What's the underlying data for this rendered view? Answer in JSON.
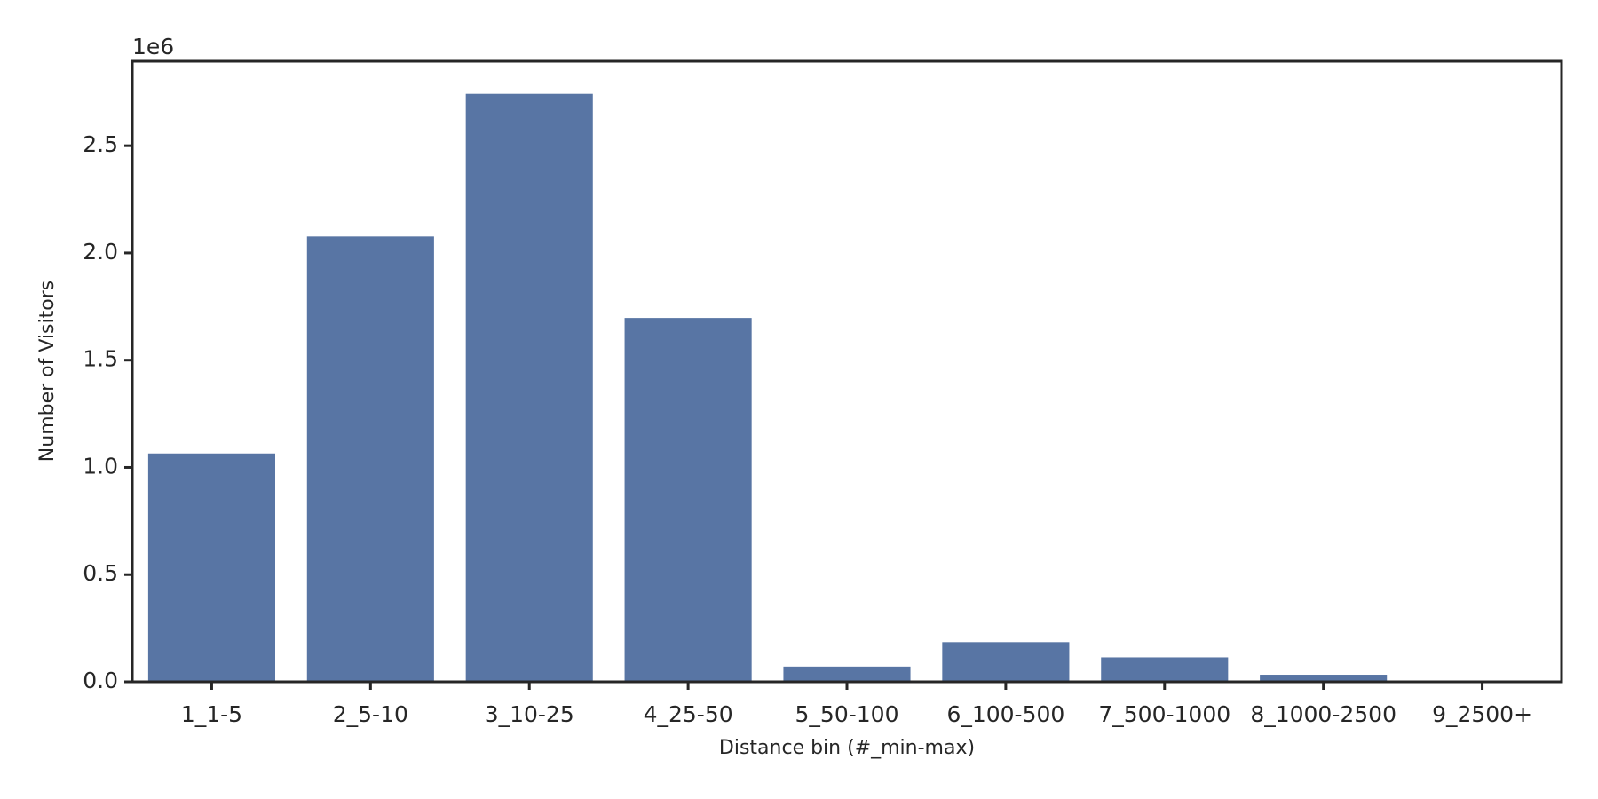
{
  "chart_data": {
    "type": "bar",
    "x_label": "Distance bin (#_min-max)",
    "y_label": "Number of Visitors",
    "y_offset_label": "1e6",
    "categories": [
      "1_1-5",
      "2_5-10",
      "3_10-25",
      "4_25-50",
      "5_50-100",
      "6_100-500",
      "7_500-1000",
      "8_1000-2500",
      "9_2500+"
    ],
    "values": [
      1.065,
      2.077,
      2.742,
      1.697,
      0.071,
      0.185,
      0.114,
      0.033,
      0.002
    ],
    "color": "#5875a4",
    "ylim": [
      0,
      2.894
    ],
    "yticks": [
      {
        "value": 0,
        "label": "0.0"
      },
      {
        "value": 0.5,
        "label": "0.5"
      },
      {
        "value": 1,
        "label": "1.0"
      },
      {
        "value": 1.5,
        "label": "1.5"
      },
      {
        "value": 2,
        "label": "2.0"
      },
      {
        "value": 2.5,
        "label": "2.5"
      }
    ]
  }
}
